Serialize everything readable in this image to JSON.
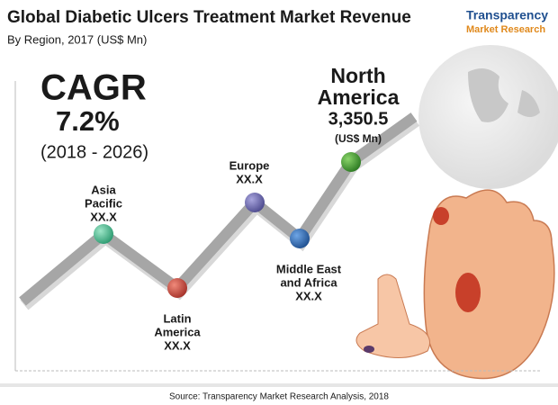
{
  "header": {
    "title": "Global Diabetic Ulcers Treatment Market Revenue",
    "subtitle": "By Region, 2017 (US$ Mn)"
  },
  "logo": {
    "line1": "Transparency",
    "line2": "Market Research"
  },
  "cagr": {
    "label": "CAGR",
    "value": "7.2%",
    "period": "(2018 - 2026)"
  },
  "regions": [
    {
      "name_lines": [
        "Asia",
        "Pacific"
      ],
      "value": "XX.X"
    },
    {
      "name_lines": [
        "Latin",
        "America"
      ],
      "value": "XX.X"
    },
    {
      "name_lines": [
        "Europe"
      ],
      "value": "XX.X"
    },
    {
      "name_lines": [
        "Middle East",
        "and Africa"
      ],
      "value": "XX.X"
    },
    {
      "name_lines": [
        "North",
        "America"
      ],
      "value": "3,350.5",
      "unit": "(US$ Mn)"
    }
  ],
  "source": "Source: Transparency Market Research Analysis, 2018"
}
